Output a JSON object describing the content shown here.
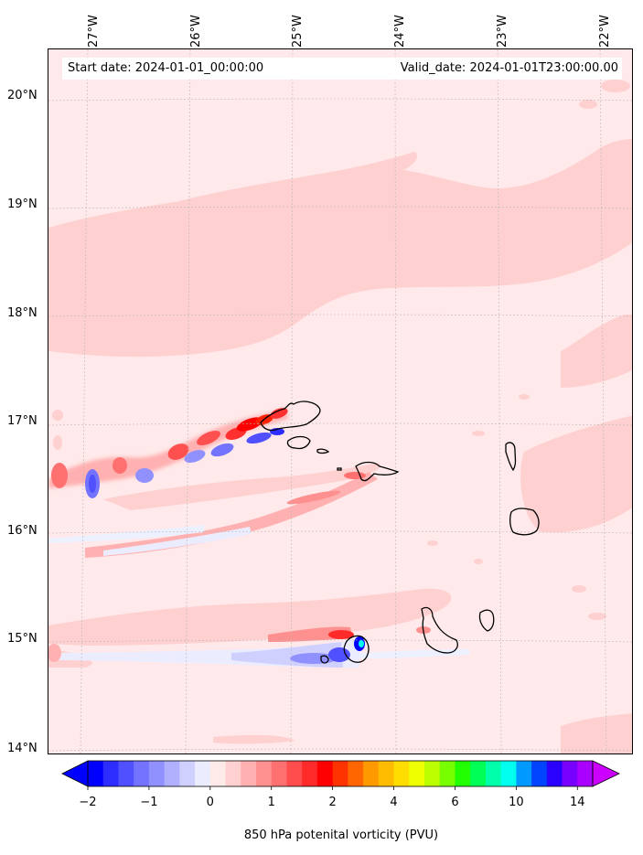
{
  "map": {
    "start_date_label": "Start date: 2024-01-01_00:00:00",
    "valid_date_label": "Valid_date: 2024-01-01T23:00:00.00",
    "longitude_labels": [
      "27°W",
      "26°W",
      "25°W",
      "24°W",
      "23°W",
      "22°W"
    ],
    "latitude_labels": [
      "20°N",
      "19°N",
      "18°N",
      "17°N",
      "16°N",
      "15°N",
      "14°N"
    ],
    "lon_range_deg": [
      -27.35,
      -21.6
    ],
    "lat_range_deg": [
      13.95,
      20.42
    ],
    "background_color": "#ffe9ea",
    "islands": [
      "Santo Antão",
      "São Vicente",
      "Santa Luzia",
      "São Nicolau",
      "Sal",
      "Boa Vista",
      "Maio",
      "Santiago",
      "Fogo",
      "Brava"
    ]
  },
  "colorbar": {
    "label": "850 hPa potenital vorticity (PVU)",
    "tick_labels": [
      "−2",
      "−1",
      "0",
      "1",
      "2",
      "4",
      "6",
      "10",
      "14"
    ],
    "extend": "both",
    "colors": [
      "#0000ff",
      "#2d2dff",
      "#5050ff",
      "#7373ff",
      "#9090ff",
      "#b0b0ff",
      "#d0d0ff",
      "#ececff",
      "#ffeaea",
      "#ffd0d0",
      "#ffb0b0",
      "#ff9090",
      "#ff7070",
      "#ff4d4d",
      "#ff2a2a",
      "#ff0000",
      "#ff3300",
      "#ff6600",
      "#ff9900",
      "#ffbb00",
      "#ffdd00",
      "#eeff00",
      "#bbff00",
      "#77ff00",
      "#22ff00",
      "#00ff55",
      "#00ffaa",
      "#00ffee",
      "#0099ff",
      "#0044ff",
      "#2a00ff",
      "#7700ff",
      "#aa00ff"
    ],
    "under_color": "#0000ff",
    "over_color": "#cc00ff"
  }
}
